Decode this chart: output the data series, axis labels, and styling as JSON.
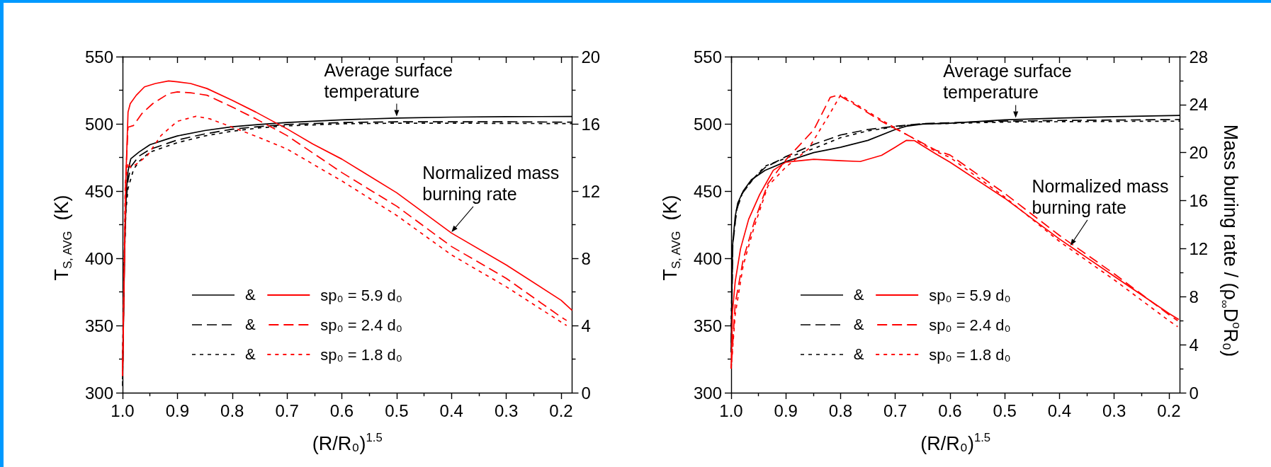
{
  "chart_data": [
    {
      "type": "line",
      "xlabel": "(R/R₀)$^{1.5}$",
      "ylabel": "T$_{S, AVG}$  (K)",
      "xlim": [
        1,
        0.18
      ],
      "xticks": [
        {
          "value": 1,
          "label": "1.0"
        },
        {
          "value": 0.95,
          "label": null
        },
        0.9,
        {
          "value": 0.85,
          "label": null
        },
        0.8,
        {
          "value": 0.75,
          "label": null
        },
        0.7,
        {
          "value": 0.65,
          "label": null
        },
        0.6,
        {
          "value": 0.55,
          "label": null
        },
        0.5,
        {
          "value": 0.45,
          "label": null
        },
        0.4,
        {
          "value": 0.35,
          "label": null
        },
        0.3,
        {
          "value": 0.25,
          "label": null
        },
        0.2
      ],
      "ylim": [
        300,
        550
      ],
      "yticks": [
        300,
        {
          "value": 325,
          "label": null
        },
        350,
        {
          "value": 375,
          "label": null
        },
        400,
        {
          "value": 425,
          "label": null
        },
        450,
        {
          "value": 475,
          "label": null
        },
        500,
        {
          "value": 525,
          "label": null
        },
        550
      ],
      "y2lim": [
        0,
        20
      ],
      "y2ticks": [
        0,
        {
          "value": 2,
          "label": null
        },
        4,
        {
          "value": 6,
          "label": null
        },
        8,
        {
          "value": 10,
          "label": null
        },
        12,
        {
          "value": 14,
          "label": null
        },
        16,
        {
          "value": 18,
          "label": null
        },
        20
      ],
      "grid": false,
      "legend": "bottom left",
      "annotations": [
        "&",
        {
          "text": "Average surface temperature",
          "x": 0.5,
          "y": 505
        },
        {
          "text": "Normalized mass burning rate",
          "x": 0.4,
          "y": 419
        }
      ],
      "series": [
        {
          "color": "#000000",
          "line_style": "solid",
          "x": [
            1,
            0.998,
            0.996,
            0.993,
            0.99,
            0.985,
            0.97,
            0.95,
            0.92,
            0.9,
            0.85,
            0.8,
            0.75,
            0.7,
            0.6,
            0.5,
            0.4,
            0.3,
            0.18
          ],
          "values": [
            310,
            360,
            410,
            450,
            465,
            474,
            479,
            484.5,
            488.5,
            491,
            495,
            497.8,
            499.5,
            501,
            503,
            504.3,
            505,
            505.3,
            505.5
          ]
        },
        {
          "color": "#000000",
          "line_style": "dashed",
          "x": [
            1,
            0.997,
            0.994,
            0.99,
            0.985,
            0.97,
            0.95,
            0.9,
            0.85,
            0.8,
            0.75,
            0.7,
            0.6,
            0.5,
            0.4,
            0.3,
            0.18
          ],
          "values": [
            305,
            400,
            440,
            458,
            468,
            476,
            481,
            488,
            492.5,
            496,
            498,
            499.5,
            501,
            501.5,
            501.5,
            501.5,
            501.2
          ]
        },
        {
          "color": "#000000",
          "line_style": "dotted",
          "x": [
            1,
            0.997,
            0.994,
            0.99,
            0.98,
            0.97,
            0.95,
            0.9,
            0.85,
            0.8,
            0.75,
            0.7,
            0.6,
            0.5,
            0.4,
            0.3,
            0.18
          ],
          "values": [
            325,
            395,
            435,
            452,
            466,
            472,
            479,
            486,
            491,
            494.5,
            497,
            498.5,
            500,
            500.5,
            500.5,
            500.3,
            500.2
          ]
        },
        {
          "name": "sp₀ = 5.9 d₀",
          "color": "#ff0000",
          "line_style": "solid",
          "axis": "y2",
          "x": [
            1,
            0.9975,
            0.994,
            0.99,
            0.986,
            0.975,
            0.96,
            0.94,
            0.916,
            0.9,
            0.876,
            0.846,
            0.8,
            0.757,
            0.7,
            0.653,
            0.6,
            0.5,
            0.4,
            0.3,
            0.2,
            0.18
          ],
          "values": [
            1,
            6.3,
            12.7,
            16.7,
            17.2,
            17.7,
            18.2,
            18.4,
            18.55,
            18.5,
            18.4,
            18.1,
            17.4,
            16.7,
            15.7,
            14.8,
            13.9,
            11.9,
            9.5,
            7.6,
            5.5,
            4.9
          ]
        },
        {
          "name": "sp₀ = 2.4 d₀",
          "color": "#ff0000",
          "line_style": "dashed",
          "axis": "y2",
          "x": [
            1,
            0.997,
            0.994,
            0.99,
            0.98,
            0.965,
            0.945,
            0.916,
            0.9,
            0.876,
            0.846,
            0.8,
            0.757,
            0.7,
            0.6,
            0.5,
            0.4,
            0.3,
            0.2,
            0.19
          ],
          "values": [
            1,
            7,
            13,
            15.8,
            15.9,
            16.6,
            17.2,
            17.8,
            17.9,
            17.85,
            17.7,
            17,
            16.3,
            15.3,
            13.1,
            11.1,
            8.7,
            6.8,
            4.5,
            4.3
          ]
        },
        {
          "name": "sp₀ = 1.8 d₀",
          "color": "#ff0000",
          "line_style": "dotted",
          "axis": "y2",
          "x": [
            1,
            0.997,
            0.995,
            0.99,
            0.985,
            0.975,
            0.955,
            0.93,
            0.9,
            0.866,
            0.841,
            0.8,
            0.752,
            0.7,
            0.6,
            0.5,
            0.4,
            0.3,
            0.2,
            0.19
          ],
          "values": [
            1,
            8,
            12.4,
            13.7,
            13.4,
            13.6,
            14.1,
            15.3,
            16.15,
            16.45,
            16.3,
            15.8,
            15.2,
            14.5,
            12.6,
            10.55,
            8.2,
            6.3,
            4.2,
            4
          ]
        }
      ]
    },
    {
      "type": "line",
      "xlabel": "(R/R₀)$^{1.5}$",
      "ylabel": "T$_{S, AVG}$  (K)",
      "y2label": "Mass buring rate / (ρ$_{∞}$D$^{o}$R₀)",
      "xlim": [
        1,
        0.18
      ],
      "xticks": [
        {
          "value": 1,
          "label": "1.0"
        },
        {
          "value": 0.95,
          "label": null
        },
        0.9,
        {
          "value": 0.85,
          "label": null
        },
        0.8,
        {
          "value": 0.75,
          "label": null
        },
        0.7,
        {
          "value": 0.65,
          "label": null
        },
        0.6,
        {
          "value": 0.55,
          "label": null
        },
        0.5,
        {
          "value": 0.45,
          "label": null
        },
        0.4,
        {
          "value": 0.35,
          "label": null
        },
        0.3,
        {
          "value": 0.25,
          "label": null
        },
        0.2
      ],
      "ylim": [
        300,
        550
      ],
      "yticks": [
        300,
        {
          "value": 325,
          "label": null
        },
        350,
        {
          "value": 375,
          "label": null
        },
        400,
        {
          "value": 425,
          "label": null
        },
        450,
        {
          "value": 475,
          "label": null
        },
        500,
        {
          "value": 525,
          "label": null
        },
        550
      ],
      "y2lim": [
        0,
        28
      ],
      "y2ticks": [
        0,
        {
          "value": 2,
          "label": null
        },
        4,
        {
          "value": 6,
          "label": null
        },
        8,
        {
          "value": 10,
          "label": null
        },
        12,
        {
          "value": 14,
          "label": null
        },
        16,
        {
          "value": 18,
          "label": null
        },
        20,
        {
          "value": 22,
          "label": null
        },
        24,
        {
          "value": 26,
          "label": null
        },
        28
      ],
      "grid": false,
      "legend": "bottom left",
      "annotations": [
        "&",
        {
          "text": "Average surface temperature",
          "x": 0.48,
          "y": 504
        },
        {
          "text": "Normalized mass burning rate",
          "x": 0.38,
          "y": 409
        }
      ],
      "series": [
        {
          "color": "#000000",
          "line_style": "solid",
          "x": [
            1,
            0.9975,
            0.9926,
            0.988,
            0.978,
            0.963,
            0.938,
            0.9,
            0.849,
            0.8,
            0.75,
            0.7,
            0.68,
            0.65,
            0.6,
            0.5,
            0.4,
            0.3,
            0.18
          ],
          "values": [
            330,
            409,
            431,
            441,
            450,
            458.4,
            465.4,
            471.9,
            478.6,
            482.6,
            487.7,
            495.8,
            498.2,
            499.8,
            500.5,
            503,
            504.3,
            505.3,
            506.3
          ]
        },
        {
          "color": "#000000",
          "line_style": "dashed",
          "x": [
            1,
            0.997,
            0.99,
            0.98,
            0.96,
            0.938,
            0.9,
            0.849,
            0.8,
            0.75,
            0.7,
            0.65,
            0.6,
            0.5,
            0.4,
            0.3,
            0.18
          ],
          "values": [
            330,
            410,
            436,
            448,
            459,
            467.5,
            475.6,
            484.7,
            491.7,
            495.8,
            498.2,
            500.2,
            500.8,
            502,
            502.5,
            502.8,
            503.2
          ]
        },
        {
          "color": "#000000",
          "line_style": "dotted",
          "x": [
            1,
            0.997,
            0.99,
            0.98,
            0.96,
            0.938,
            0.9,
            0.849,
            0.8,
            0.75,
            0.7,
            0.65,
            0.6,
            0.5,
            0.4,
            0.3,
            0.18
          ],
          "values": [
            350,
            412,
            436,
            448,
            459,
            468.5,
            474.5,
            481.6,
            489.7,
            494.8,
            497.8,
            500,
            500.3,
            501.3,
            501.6,
            501.8,
            502
          ]
        },
        {
          "name": "sp₀ = 5.9 d₀",
          "color": "#ff0000",
          "line_style": "solid",
          "axis": "y2",
          "x": [
            1,
            0.9975,
            0.9926,
            0.983,
            0.968,
            0.948,
            0.923,
            0.9,
            0.849,
            0.8,
            0.764,
            0.725,
            0.7,
            0.68,
            0.665,
            0.65,
            0.626,
            0.6,
            0.5,
            0.4,
            0.3,
            0.2,
            0.182
          ],
          "values": [
            2,
            6.75,
            9.25,
            11.96,
            14.45,
            16.5,
            18.53,
            19.21,
            19.44,
            19.33,
            19.26,
            19.78,
            20.46,
            21.02,
            21,
            20.57,
            19.9,
            19.2,
            16.2,
            12.8,
            9.7,
            6.6,
            6.1
          ]
        },
        {
          "name": "sp₀ = 2.4 d₀",
          "color": "#ff0000",
          "line_style": "dashed",
          "axis": "y2",
          "x": [
            1,
            0.9926,
            0.978,
            0.958,
            0.933,
            0.9,
            0.849,
            0.819,
            0.804,
            0.774,
            0.725,
            0.675,
            0.626,
            0.6,
            0.5,
            0.4,
            0.3,
            0.2,
            0.184
          ],
          "values": [
            2,
            7.4,
            11.1,
            14.2,
            17.4,
            19.4,
            21.9,
            24.6,
            24.8,
            24,
            22.6,
            21.4,
            20.2,
            19.8,
            16.6,
            13.1,
            9.9,
            6.5,
            6
          ]
        },
        {
          "name": "sp₀ = 1.8 d₀",
          "color": "#ff0000",
          "line_style": "dotted",
          "axis": "y2",
          "x": [
            1,
            0.9926,
            0.978,
            0.958,
            0.933,
            0.9,
            0.859,
            0.819,
            0.8,
            0.774,
            0.725,
            0.675,
            0.626,
            0.6,
            0.5,
            0.4,
            0.3,
            0.2,
            0.184
          ],
          "values": [
            2,
            6.5,
            10.6,
            13.8,
            17.2,
            18.8,
            20.3,
            23.3,
            24.8,
            24.1,
            22.7,
            21.4,
            20.1,
            19.6,
            16.3,
            12.6,
            9.4,
            6,
            5.5
          ]
        }
      ]
    }
  ]
}
